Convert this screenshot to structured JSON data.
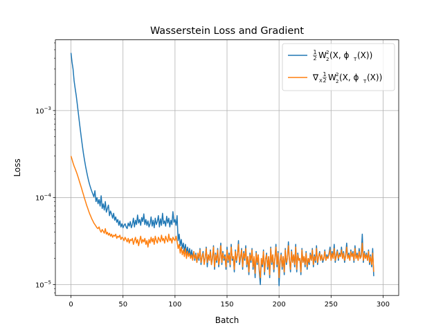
{
  "chart_data": {
    "type": "line",
    "title": "Wasserstein Loss and Gradient",
    "xlabel": "Batch",
    "ylabel": "Loss",
    "yscale": "log",
    "xlim": [
      -15,
      315
    ],
    "ylim": [
      7.5e-06,
      0.0065
    ],
    "grid": true,
    "legend_position": "upper right",
    "x_ticks": [
      {
        "value": 0,
        "label": "0"
      },
      {
        "value": 50,
        "label": "50"
      },
      {
        "value": 100,
        "label": "100"
      },
      {
        "value": 150,
        "label": "150"
      },
      {
        "value": 200,
        "label": "200"
      },
      {
        "value": 250,
        "label": "250"
      },
      {
        "value": 300,
        "label": "300"
      }
    ],
    "y_ticks": [
      {
        "value": 1e-05,
        "base": "10",
        "exp": "−5"
      },
      {
        "value": 0.0001,
        "base": "10",
        "exp": "−4"
      },
      {
        "value": 0.001,
        "base": "10",
        "exp": "−3"
      }
    ],
    "series": [
      {
        "name": "½W₂²(X, φ_T(X))",
        "legend_label": {
          "frac_num": "1",
          "frac_den": "2",
          "pre": "",
          "main": "W",
          "sup": "2",
          "sub": "2",
          "post": "(X, ϕ",
          "post_sub": "T",
          "tail": "(X))"
        },
        "color": "#1f77b4",
        "x_start": 0,
        "x_step": 1,
        "values": [
          0.0046,
          0.0036,
          0.003,
          0.0022,
          0.0018,
          0.0015,
          0.0012,
          0.00095,
          0.00075,
          0.0006,
          0.00048,
          0.00039,
          0.00032,
          0.00027,
          0.00023,
          0.0002,
          0.000175,
          0.000155,
          0.00014,
          0.000128,
          0.000118,
          0.00011,
          0.000102,
          0.00012,
          9e-05,
          0.0001,
          8.5e-05,
          9.5e-05,
          8e-05,
          0.000105,
          7.5e-05,
          8.5e-05,
          7.2e-05,
          9e-05,
          6.8e-05,
          7.5e-05,
          8.2e-05,
          6.2e-05,
          7e-05,
          6.5e-05,
          5.8e-05,
          6.6e-05,
          5.5e-05,
          6e-05,
          5.2e-05,
          5.6e-05,
          4.8e-05,
          5.4e-05,
          4.6e-05,
          5e-05,
          4.5e-05,
          4.8e-05,
          5e-05,
          4.6e-05,
          4.4e-05,
          5.1e-05,
          4.7e-05,
          5.3e-05,
          4.5e-05,
          4.9e-05,
          5.8e-05,
          4.6e-05,
          5.5e-05,
          4.9e-05,
          6.3e-05,
          5.1e-05,
          5.6e-05,
          4.8e-05,
          5.9e-05,
          5.3e-05,
          6.5e-05,
          4.9e-05,
          5.6e-05,
          4.8e-05,
          5.4e-05,
          4.6e-05,
          5e-05,
          6e-05,
          4.7e-05,
          5.5e-05,
          4.5e-05,
          5.8e-05,
          4.9e-05,
          5.3e-05,
          6.2e-05,
          4.6e-05,
          5.7e-05,
          4.8e-05,
          6.6e-05,
          5e-05,
          5.4e-05,
          4.7e-05,
          6.1e-05,
          5.1e-05,
          5.8e-05,
          4.6e-05,
          5.5e-05,
          4.9e-05,
          6.9e-05,
          5.2e-05,
          5.6e-05,
          4.8e-05,
          6.2e-05,
          3.2e-05,
          3.8e-05,
          2.8e-05,
          3.3e-05,
          2.6e-05,
          3e-05,
          2.4e-05,
          2.9e-05,
          2.3e-05,
          2.7e-05,
          2.2e-05,
          2.6e-05,
          2.1e-05,
          2.5e-05,
          2e-05,
          2.4e-05,
          1.9e-05,
          2.3e-05,
          1.8e-05,
          2.2e-05,
          1.9e-05,
          2.6e-05,
          1.7e-05,
          2.1e-05,
          2.4e-05,
          1.8e-05,
          2e-05,
          2.7e-05,
          1.6e-05,
          2.2e-05,
          1.9e-05,
          2.5e-05,
          1.7e-05,
          2e-05,
          2.8e-05,
          1.5e-05,
          2.3e-05,
          1.8e-05,
          2.6e-05,
          1.6e-05,
          2.1e-05,
          3e-05,
          1.7e-05,
          2.4e-05,
          1.9e-05,
          2.2e-05,
          1.5e-05,
          2.7e-05,
          1.8e-05,
          2.3e-05,
          1.6e-05,
          2.9e-05,
          1.9e-05,
          2.1e-05,
          1.4e-05,
          2.5e-05,
          1.8e-05,
          2.2e-05,
          3.2e-05,
          1.7e-05,
          2e-05,
          2.6e-05,
          1.5e-05,
          2.4e-05,
          1.9e-05,
          2.8e-05,
          1.6e-05,
          2.1e-05,
          1.3e-05,
          2.3e-05,
          1.8e-05,
          2.6e-05,
          1.5e-05,
          2e-05,
          1.2e-05,
          2.4e-05,
          1.7e-05,
          2.2e-05,
          1.4e-05,
          1e-05,
          2e-05,
          1.6e-05,
          2.5e-05,
          1.3e-05,
          1.9e-05,
          2.3e-05,
          1.5e-05,
          2.1e-05,
          1.2e-05,
          2.7e-05,
          1.7e-05,
          2.2e-05,
          1.4e-05,
          2e-05,
          2.9e-05,
          1.6e-05,
          2.4e-05,
          9.7e-06,
          1.8e-05,
          2.3e-05,
          1.5e-05,
          2.1e-05,
          1.3e-05,
          2.6e-05,
          1.7e-05,
          2e-05,
          3.1e-05,
          1.9e-05,
          1.4e-05,
          2.5e-05,
          1.8e-05,
          2.2e-05,
          1.6e-05,
          2.9e-05,
          1.4e-05,
          2.3e-05,
          1.9e-05,
          2e-05,
          1.3e-05,
          2.6e-05,
          1.8e-05,
          2.1e-05,
          1.6e-05,
          2.4e-05,
          1.5e-05,
          2e-05,
          1.7e-05,
          2.3e-05,
          1.9e-05,
          2.6e-05,
          1.6e-05,
          2.2e-05,
          1.8e-05,
          2.8e-05,
          1.7e-05,
          2.1e-05,
          2.4e-05,
          1.9e-05,
          2.2e-05,
          1.8e-05,
          2e-05,
          2.5e-05,
          1.9e-05,
          2.2e-05,
          2e-05,
          2.3e-05,
          2.7e-05,
          1.9e-05,
          2.4e-05,
          2e-05,
          2.9e-05,
          1.8e-05,
          2.2e-05,
          2.5e-05,
          1.9e-05,
          2.3e-05,
          2.1e-05,
          2.7e-05,
          2e-05,
          2.4e-05,
          1.8e-05,
          2.2e-05,
          3e-05,
          2e-05,
          2.3e-05,
          1.9e-05,
          2.5e-05,
          2.1e-05,
          2.4e-05,
          1.8e-05,
          2.8e-05,
          2e-05,
          2.3e-05,
          1.9e-05,
          2.6e-05,
          2e-05,
          2.2e-05,
          3.8e-05,
          1.8e-05,
          2.4e-05,
          2e-05,
          2.3e-05,
          1.9e-05,
          2.5e-05,
          1.7e-05,
          2.2e-05,
          1.6e-05,
          2.6e-05,
          1.25e-05
        ]
      },
      {
        "name": "∇_X ½W₂²(X, φ_T(X))",
        "legend_label": {
          "frac_num": "1",
          "frac_den": "2",
          "pre": "∇",
          "pre_sub": "X",
          "main": "W",
          "sup": "2",
          "sub": "2",
          "post": "(X, ϕ",
          "post_sub": "T",
          "tail": "(X))"
        },
        "color": "#ff7f0e",
        "x_start": 0,
        "x_step": 1,
        "values": [
          0.0003,
          0.000275,
          0.00025,
          0.00023,
          0.000215,
          0.0002,
          0.000185,
          0.00017,
          0.000155,
          0.000142,
          0.00013,
          0.000118,
          0.000108,
          9.8e-05,
          9e-05,
          8.2e-05,
          7.6e-05,
          7e-05,
          6.5e-05,
          6.1e-05,
          5.7e-05,
          5.4e-05,
          5.1e-05,
          4.9e-05,
          4.7e-05,
          4.5e-05,
          4.4e-05,
          4.6e-05,
          4.2e-05,
          4e-05,
          4.3e-05,
          4.1e-05,
          3.9e-05,
          4.4e-05,
          3.8e-05,
          4e-05,
          3.7e-05,
          3.9e-05,
          3.6e-05,
          3.8e-05,
          3.5e-05,
          3.7e-05,
          3.6e-05,
          3.8e-05,
          3.4e-05,
          3.6e-05,
          3.5e-05,
          3.7e-05,
          3.3e-05,
          3.5e-05,
          3.4e-05,
          3.2e-05,
          3.5e-05,
          3.3e-05,
          3.1e-05,
          3.4e-05,
          3e-05,
          3.3e-05,
          3.2e-05,
          3.4e-05,
          2.9e-05,
          3.2e-05,
          3.5e-05,
          3e-05,
          3.3e-05,
          2.8e-05,
          3.2e-05,
          3.6e-05,
          3e-05,
          3.3e-05,
          3.1e-05,
          3.4e-05,
          2.9e-05,
          3.2e-05,
          2.7e-05,
          3.3e-05,
          3e-05,
          3.5e-05,
          3.1e-05,
          3.4e-05,
          2.9e-05,
          3.6e-05,
          3.2e-05,
          3e-05,
          3.5e-05,
          3.3e-05,
          3.1e-05,
          3.7e-05,
          3.2e-05,
          3.4e-05,
          3e-05,
          3.6e-05,
          3.3e-05,
          3.1e-05,
          3.8e-05,
          3.2e-05,
          3.4e-05,
          3e-05,
          3.5e-05,
          3.3e-05,
          3.2e-05,
          3.6e-05,
          3.1e-05,
          2.6e-05,
          2.9e-05,
          2.3e-05,
          2.7e-05,
          2.2e-05,
          2.5e-05,
          2.1e-05,
          2.6e-05,
          2e-05,
          2.4e-05,
          2.1e-05,
          2.3e-05,
          2e-05,
          2.2e-05,
          1.9e-05,
          2.4e-05,
          2e-05,
          2.2e-05,
          1.8e-05,
          2.3e-05,
          2e-05,
          2.5e-05,
          1.8e-05,
          2.1e-05,
          2.3e-05,
          1.7e-05,
          2e-05,
          2.6e-05,
          1.8e-05,
          2.2e-05,
          1.9e-05,
          2.4e-05,
          1.7e-05,
          2.1e-05,
          2.7e-05,
          1.6e-05,
          2.2e-05,
          1.9e-05,
          2.5e-05,
          1.7e-05,
          2e-05,
          2.8e-05,
          1.8e-05,
          2.3e-05,
          2e-05,
          2.1e-05,
          1.6e-05,
          2.5e-05,
          1.9e-05,
          2.2e-05,
          1.7e-05,
          2.7e-05,
          2e-05,
          2.1e-05,
          1.5e-05,
          2.4e-05,
          1.9e-05,
          2.2e-05,
          2.9e-05,
          1.8e-05,
          2.1e-05,
          2.5e-05,
          1.6e-05,
          2.3e-05,
          2e-05,
          2.6e-05,
          1.7e-05,
          2.1e-05,
          1.4e-05,
          2.2e-05,
          1.9e-05,
          2.5e-05,
          1.6e-05,
          2.1e-05,
          1.35e-05,
          2.3e-05,
          1.8e-05,
          2.2e-05,
          1.5e-05,
          1.2e-05,
          2e-05,
          1.7e-05,
          2.4e-05,
          1.4e-05,
          2e-05,
          2.2e-05,
          1.6e-05,
          2.1e-05,
          1.3e-05,
          2.6e-05,
          1.8e-05,
          2.2e-05,
          1.5e-05,
          2e-05,
          2.7e-05,
          1.7e-05,
          2.3e-05,
          1.2e-05,
          1.9e-05,
          2.2e-05,
          1.6e-05,
          2.1e-05,
          1.4e-05,
          2.5e-05,
          1.8e-05,
          2e-05,
          2.8e-05,
          1.9e-05,
          1.5e-05,
          2.4e-05,
          1.8e-05,
          2.2e-05,
          1.7e-05,
          2.7e-05,
          1.5e-05,
          2.2e-05,
          1.9e-05,
          2e-05,
          1.4e-05,
          2.5e-05,
          1.8e-05,
          2.1e-05,
          1.7e-05,
          2.3e-05,
          1.6e-05,
          2e-05,
          1.8e-05,
          2.2e-05,
          1.9e-05,
          2.5e-05,
          1.7e-05,
          2.1e-05,
          1.9e-05,
          2.6e-05,
          1.8e-05,
          2.1e-05,
          2.3e-05,
          1.9e-05,
          2.2e-05,
          1.9e-05,
          2e-05,
          2.4e-05,
          1.9e-05,
          2.1e-05,
          2e-05,
          2.2e-05,
          2.5e-05,
          1.9e-05,
          2.3e-05,
          2e-05,
          2.6e-05,
          1.9e-05,
          2.1e-05,
          2.4e-05,
          2e-05,
          2.2e-05,
          2.1e-05,
          2.5e-05,
          2e-05,
          2.3e-05,
          1.9e-05,
          2.1e-05,
          2.7e-05,
          2e-05,
          2.2e-05,
          1.9e-05,
          2.4e-05,
          2.1e-05,
          2.3e-05,
          1.9e-05,
          2.6e-05,
          2e-05,
          2.2e-05,
          1.9e-05,
          2.4e-05,
          2e-05,
          2.1e-05,
          3e-05,
          1.9e-05,
          2.3e-05,
          2e-05,
          2.2e-05,
          1.9e-05,
          2.4e-05,
          1.8e-05,
          2.1e-05,
          1.7e-05,
          2.3e-05,
          1.4e-05
        ]
      }
    ]
  }
}
